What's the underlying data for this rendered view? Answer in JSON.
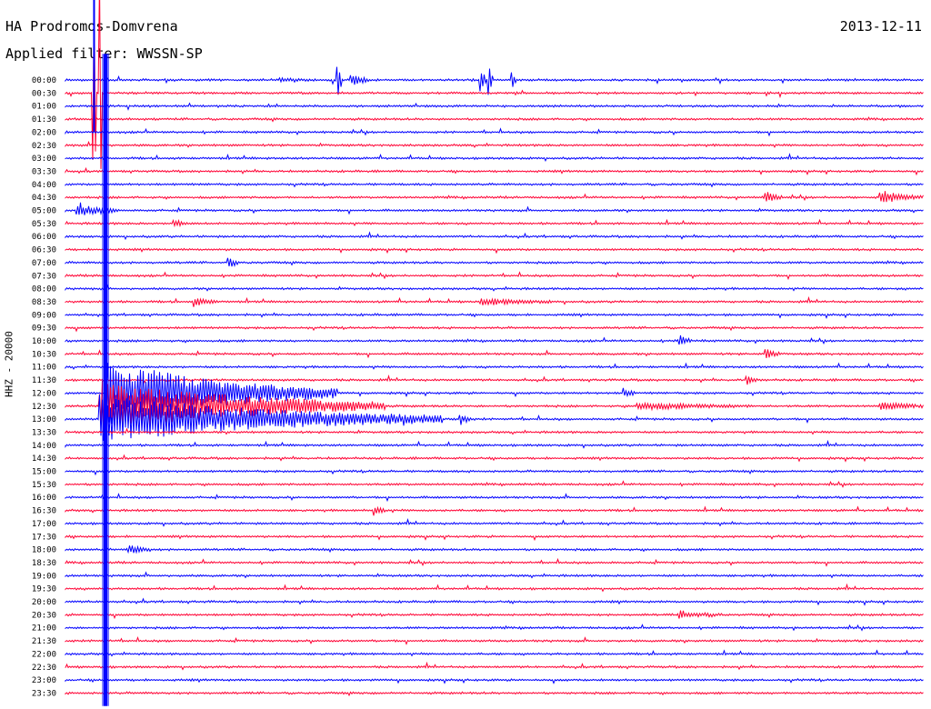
{
  "header": {
    "station": "HA Prodromos-Domvrena",
    "filter": "Applied filter: WWSSN-SP",
    "date": "2013-12-11"
  },
  "chart_data": {
    "type": "line",
    "title": "HA Prodromos-Domvrena",
    "subtitle": "Applied filter: WWSSN-SP",
    "date": "2013-12-11",
    "ylabel": "HHZ - 20000",
    "xlabel": "",
    "row_labels": [
      "00:00",
      "00:30",
      "01:00",
      "01:30",
      "02:00",
      "02:30",
      "03:00",
      "03:30",
      "04:00",
      "04:30",
      "05:00",
      "05:30",
      "06:00",
      "06:30",
      "07:00",
      "07:30",
      "08:00",
      "08:30",
      "09:00",
      "09:30",
      "10:00",
      "10:30",
      "11:00",
      "11:30",
      "12:00",
      "12:30",
      "13:00",
      "13:30",
      "14:00",
      "14:30",
      "15:00",
      "15:30",
      "16:00",
      "16:30",
      "17:00",
      "17:30",
      "18:00",
      "18:30",
      "19:00",
      "19:30",
      "20:00",
      "20:30",
      "21:00",
      "21:30",
      "22:00",
      "22:30",
      "23:00",
      "23:30"
    ],
    "trace_colors": [
      "#0000ff",
      "#ff0033"
    ],
    "minutes_per_row": 30,
    "events": [
      {
        "row": 0,
        "minute": 10.0,
        "amp": 1.6,
        "dur": 0.6
      },
      {
        "row": 0,
        "minute": 7.5,
        "amp": 0.6,
        "dur": 1.0
      },
      {
        "row": 0,
        "minute": 9.5,
        "amp": 6.0,
        "dur": 0.15
      },
      {
        "row": 0,
        "minute": 14.5,
        "amp": 3.5,
        "dur": 0.2
      },
      {
        "row": 0,
        "minute": 14.8,
        "amp": 4.0,
        "dur": 0.15
      },
      {
        "row": 0,
        "minute": 15.6,
        "amp": 3.0,
        "dur": 0.15
      },
      {
        "row": 1,
        "minute": 1.0,
        "amp": 38.0,
        "dur": 0.05
      },
      {
        "row": 1,
        "minute": 1.2,
        "amp": 38.0,
        "dur": 0.05
      },
      {
        "row": 9,
        "minute": 24.5,
        "amp": 1.5,
        "dur": 0.6
      },
      {
        "row": 9,
        "minute": 28.5,
        "amp": 1.8,
        "dur": 1.4
      },
      {
        "row": 10,
        "minute": 0.4,
        "amp": 1.6,
        "dur": 1.5
      },
      {
        "row": 11,
        "minute": 3.8,
        "amp": 1.2,
        "dur": 0.4
      },
      {
        "row": 14,
        "minute": 5.7,
        "amp": 1.2,
        "dur": 0.4
      },
      {
        "row": 17,
        "minute": 4.5,
        "amp": 1.2,
        "dur": 0.8
      },
      {
        "row": 17,
        "minute": 14.5,
        "amp": 0.9,
        "dur": 2.5
      },
      {
        "row": 20,
        "minute": 21.5,
        "amp": 1.3,
        "dur": 0.4
      },
      {
        "row": 21,
        "minute": 24.5,
        "amp": 1.4,
        "dur": 0.4
      },
      {
        "row": 23,
        "minute": 23.8,
        "amp": 1.3,
        "dur": 0.4
      },
      {
        "row": 24,
        "minute": 19.5,
        "amp": 1.2,
        "dur": 0.4
      },
      {
        "row": 24,
        "minute": 1.5,
        "amp": 9.0,
        "dur": 8.0
      },
      {
        "row": 25,
        "minute": 1.2,
        "amp": 7.0,
        "dur": 10.0
      },
      {
        "row": 25,
        "minute": 20.0,
        "amp": 0.9,
        "dur": 4.0
      },
      {
        "row": 25,
        "minute": 28.5,
        "amp": 1.0,
        "dur": 1.5
      },
      {
        "row": 26,
        "minute": 1.2,
        "amp": 6.5,
        "dur": 12.0
      },
      {
        "row": 26,
        "minute": 13.8,
        "amp": 1.6,
        "dur": 0.4
      },
      {
        "row": 33,
        "minute": 10.8,
        "amp": 1.3,
        "dur": 0.4
      },
      {
        "row": 36,
        "minute": 2.2,
        "amp": 1.3,
        "dur": 0.8
      },
      {
        "row": 41,
        "minute": 21.5,
        "amp": 0.9,
        "dur": 1.5
      }
    ],
    "mainshock": {
      "row_start": 4,
      "row_end": 47,
      "minute": 1.4,
      "amp": 14.0
    }
  }
}
